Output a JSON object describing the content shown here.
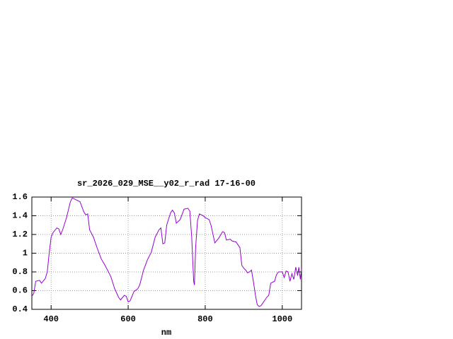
{
  "chart_data": {
    "type": "line",
    "title": "sr_2026_029_MSE__y02_r_rad 17-16-00",
    "xlabel": "nm",
    "x": [
      350,
      355,
      360,
      370,
      375,
      385,
      390,
      395,
      400,
      405,
      415,
      420,
      425,
      430,
      440,
      450,
      455,
      465,
      475,
      485,
      490,
      495,
      500,
      510,
      520,
      530,
      540,
      550,
      555,
      565,
      575,
      580,
      590,
      595,
      600,
      605,
      610,
      615,
      625,
      630,
      640,
      650,
      660,
      670,
      680,
      685,
      690,
      695,
      700,
      710,
      715,
      720,
      725,
      735,
      745,
      755,
      760,
      765,
      770,
      772,
      775,
      780,
      785,
      795,
      800,
      810,
      815,
      825,
      835,
      845,
      850,
      855,
      865,
      870,
      880,
      890,
      895,
      900,
      905,
      910,
      915,
      920,
      925,
      930,
      935,
      940,
      945,
      955,
      960,
      965,
      970,
      980,
      985,
      990,
      1000,
      1005,
      1010,
      1015,
      1020,
      1025,
      1030,
      1035,
      1040,
      1043,
      1047,
      1050
    ],
    "series": [
      {
        "name": "sr_2026_029_MSE__y02_r_rad 17-16-00",
        "color": "#9400d3",
        "values": [
          0.54,
          0.57,
          0.7,
          0.71,
          0.68,
          0.73,
          0.8,
          1.0,
          1.17,
          1.22,
          1.27,
          1.26,
          1.2,
          1.25,
          1.38,
          1.55,
          1.59,
          1.57,
          1.55,
          1.44,
          1.41,
          1.42,
          1.25,
          1.17,
          1.05,
          0.94,
          0.87,
          0.79,
          0.75,
          0.62,
          0.53,
          0.5,
          0.55,
          0.54,
          0.48,
          0.49,
          0.54,
          0.59,
          0.62,
          0.66,
          0.82,
          0.93,
          1.01,
          1.17,
          1.25,
          1.27,
          1.1,
          1.11,
          1.3,
          1.43,
          1.46,
          1.43,
          1.32,
          1.36,
          1.47,
          1.48,
          1.45,
          1.17,
          0.7,
          0.66,
          1.05,
          1.35,
          1.42,
          1.4,
          1.38,
          1.36,
          1.3,
          1.11,
          1.16,
          1.23,
          1.22,
          1.14,
          1.15,
          1.13,
          1.12,
          1.06,
          0.87,
          0.84,
          0.82,
          0.79,
          0.8,
          0.82,
          0.7,
          0.56,
          0.45,
          0.43,
          0.44,
          0.5,
          0.53,
          0.55,
          0.68,
          0.7,
          0.77,
          0.8,
          0.8,
          0.74,
          0.81,
          0.8,
          0.7,
          0.78,
          0.72,
          0.85,
          0.76,
          0.85,
          0.72,
          0.83
        ]
      }
    ],
    "xlim": [
      350,
      1050
    ],
    "ylim": [
      0.4,
      1.6
    ],
    "xticks": [
      400,
      600,
      800,
      1000
    ],
    "yticks": [
      0.4,
      0.6,
      0.8,
      1,
      1.2,
      1.4,
      1.6
    ],
    "grid": true
  }
}
